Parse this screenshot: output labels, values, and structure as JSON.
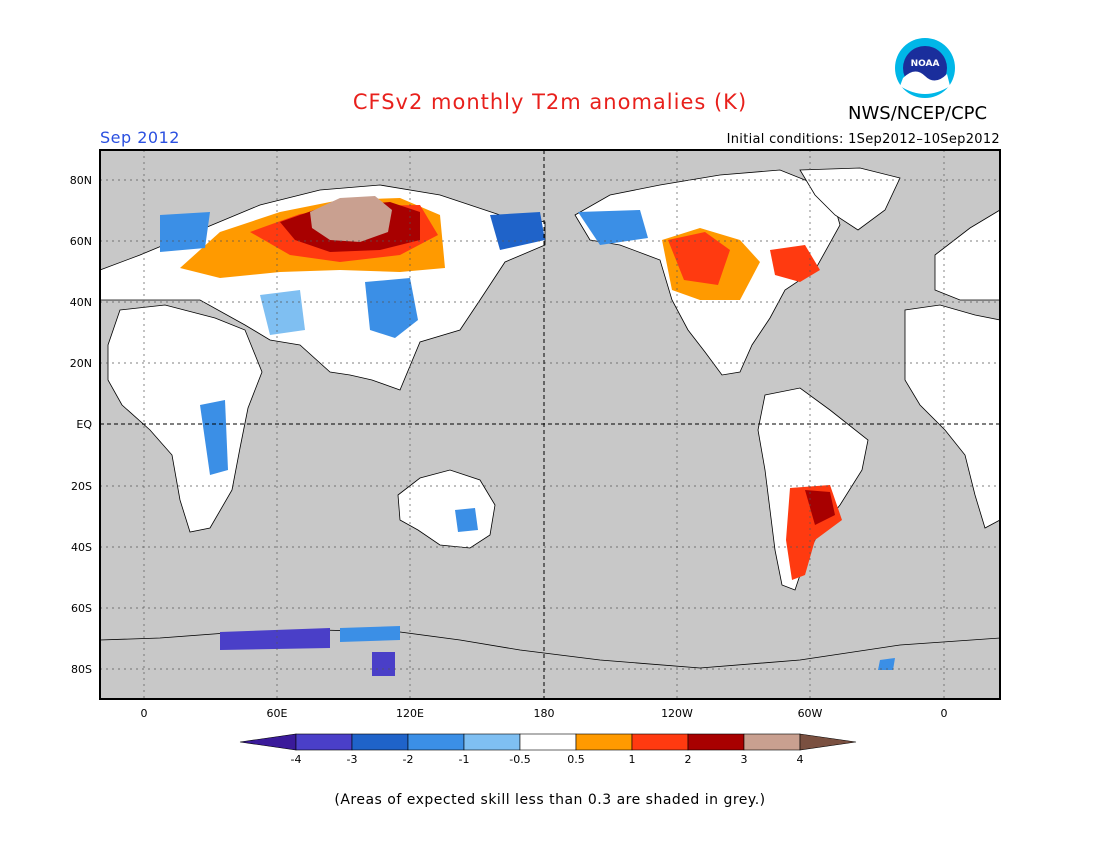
{
  "header": {
    "title": "CFSv2 monthly T2m anomalies (K)",
    "agency": "NWS/NCEP/CPC",
    "logo_text": "NOAA",
    "valid_month": "Sep 2012",
    "initial_conditions": "Initial conditions: 1Sep2012–10Sep2012"
  },
  "map": {
    "background_color": "#c8c8c8",
    "lat_labels": [
      "80N",
      "60N",
      "40N",
      "20N",
      "EQ",
      "20S",
      "40S",
      "60S",
      "80S"
    ],
    "lon_labels": [
      "0",
      "60E",
      "120E",
      "180",
      "120W",
      "60W",
      "0"
    ]
  },
  "colorbar": {
    "tick_labels": [
      "-4",
      "-3",
      "-2",
      "-1",
      "-0.5",
      "0.5",
      "1",
      "2",
      "3",
      "4"
    ],
    "colors": [
      "#3a1a9a",
      "#4a3fc8",
      "#1f63c9",
      "#3b8fe6",
      "#7fbff2",
      "#ffffff",
      "#ff9a00",
      "#ff3a10",
      "#a80000",
      "#c9a090",
      "#7a5040"
    ]
  },
  "footnote": "(Areas of expected skill less than 0.3 are shaded in grey.)"
}
